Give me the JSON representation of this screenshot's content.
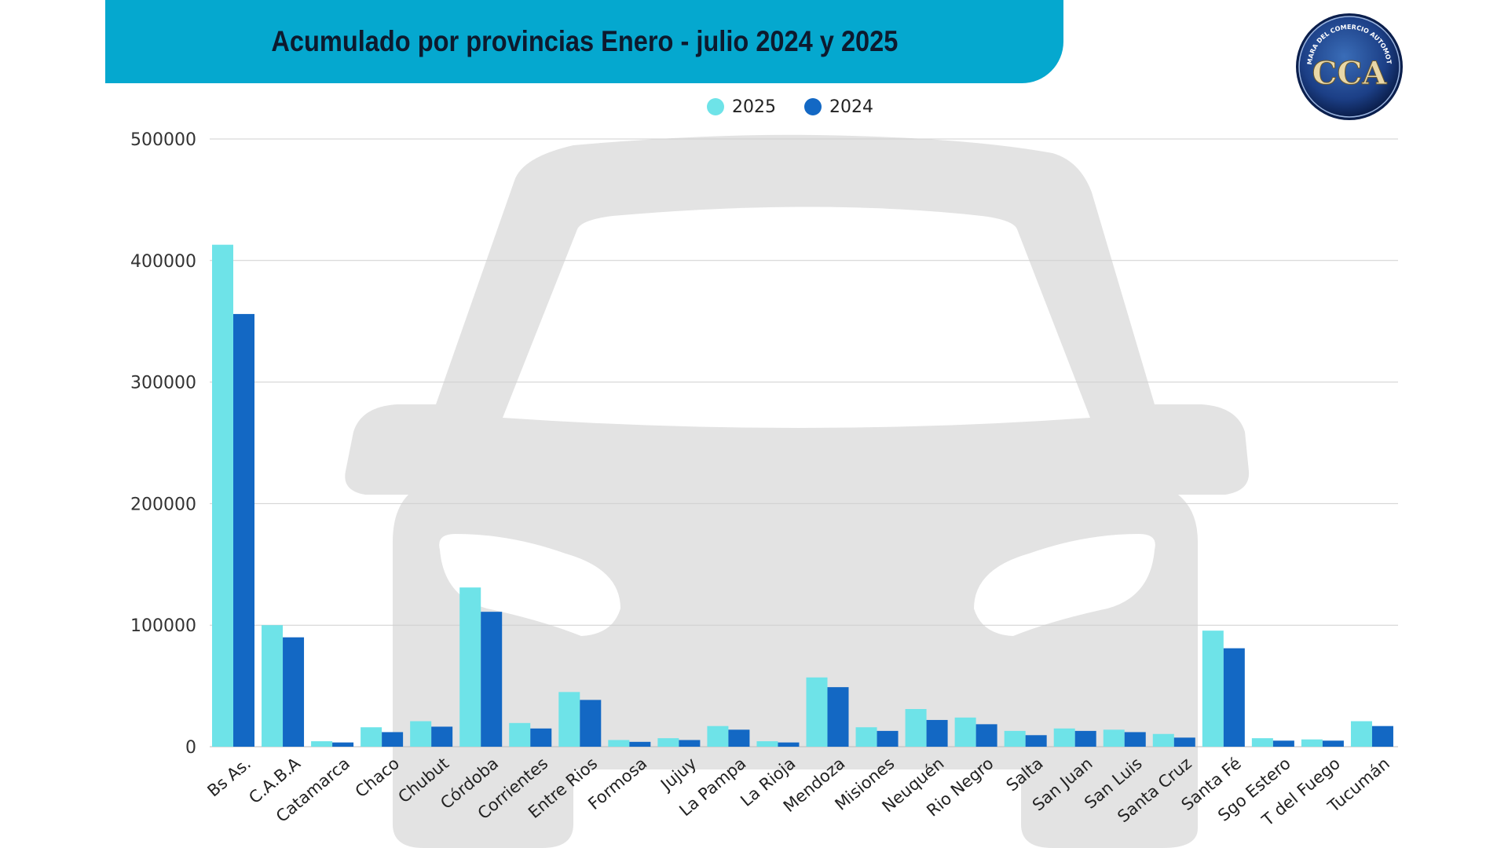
{
  "title": "Acumulado por provincias Enero  - julio 2024 y 2025",
  "logo": {
    "icon": "cca-logo-icon",
    "text": "CAMARA DEL COMERCIO AUTOMOTOR",
    "letters": "CCA"
  },
  "colors": {
    "banner": "#05a8cf",
    "series_2025": "#6ee3e8",
    "series_2024": "#1368c4",
    "watermark": "#e3e3e3"
  },
  "chart_data": {
    "type": "bar",
    "title": "Acumulado por provincias Enero  - julio 2024 y 2025",
    "xlabel": "",
    "ylabel": "",
    "ylim": [
      0,
      500000
    ],
    "yticks": [
      0,
      100000,
      200000,
      300000,
      400000,
      500000
    ],
    "ytick_labels": [
      "0",
      "100000",
      "200000",
      "300000",
      "400000",
      "500000"
    ],
    "grid": true,
    "legend": "top-center",
    "categories": [
      "Bs As.",
      "C.A.B.A",
      "Catamarca",
      "Chaco",
      "Chubut",
      "Córdoba",
      "Corrientes",
      "Entre Rios",
      "Formosa",
      "Jujuy",
      "La Pampa",
      "La Rioja",
      "Mendoza",
      "Misiones",
      "Neuquén",
      "Rio Negro",
      "Salta",
      "San Juan",
      "San Luis",
      "Santa Cruz",
      "Santa Fé",
      "Sgo Estero",
      "T del Fuego",
      "Tucumán"
    ],
    "series": [
      {
        "name": "2025",
        "color": "#6ee3e8",
        "values": [
          413000,
          100000,
          4500,
          16000,
          21000,
          131000,
          19500,
          45000,
          5500,
          7000,
          17000,
          4500,
          57000,
          16000,
          31000,
          24000,
          13000,
          15000,
          14000,
          10500,
          95500,
          7000,
          6000,
          21000
        ]
      },
      {
        "name": "2024",
        "color": "#1368c4",
        "values": [
          356000,
          90000,
          3500,
          12000,
          16500,
          111000,
          15000,
          38500,
          4000,
          5500,
          14000,
          3500,
          49000,
          13000,
          22000,
          18500,
          9500,
          13000,
          12000,
          7500,
          81000,
          5000,
          5000,
          17000
        ]
      }
    ]
  }
}
